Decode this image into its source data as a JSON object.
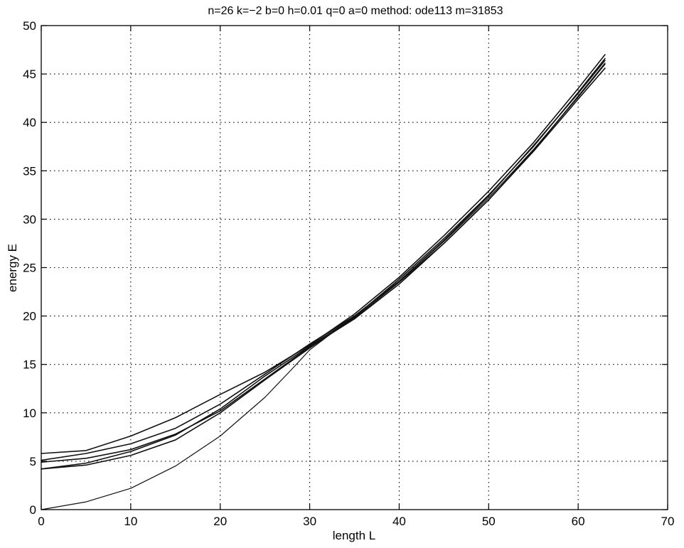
{
  "chart_data": {
    "type": "line",
    "title": "n=26   k=−2   b=0   h=0.01   q=0   a=0   method: ode113   m=31853",
    "xlabel": "length L",
    "ylabel": "energy E",
    "xlim": [
      0,
      70
    ],
    "ylim": [
      0,
      50
    ],
    "xticks": [
      0,
      10,
      20,
      30,
      40,
      50,
      60,
      70
    ],
    "yticks": [
      0,
      5,
      10,
      15,
      20,
      25,
      30,
      35,
      40,
      45,
      50
    ],
    "xtick_labels": [
      "0",
      "10",
      "20",
      "30",
      "40",
      "50",
      "60",
      "70"
    ],
    "ytick_labels": [
      "0",
      "5",
      "10",
      "15",
      "20",
      "25",
      "30",
      "35",
      "40",
      "45",
      "50"
    ],
    "grid": true,
    "grid_style": "dotted",
    "line_color": "#111111",
    "series": [
      {
        "x": [
          0,
          5,
          10,
          15,
          20,
          25,
          28,
          30,
          35,
          40,
          45,
          50,
          55,
          60,
          63
        ],
        "values": [
          0,
          0.8,
          2.2,
          4.5,
          7.6,
          11.6,
          14.5,
          16.5,
          20.0,
          23.6,
          27.7,
          32.2,
          37.2,
          42.6,
          46.0
        ]
      },
      {
        "x": [
          0,
          5,
          10,
          15,
          20,
          25,
          30,
          35,
          40,
          45,
          50,
          55,
          60,
          63
        ],
        "values": [
          5.8,
          6.1,
          7.6,
          9.5,
          11.9,
          14.2,
          17.0,
          20.2,
          24.0,
          28.3,
          32.9,
          37.9,
          43.5,
          47.0
        ]
      },
      {
        "x": [
          0,
          5,
          10,
          15,
          20,
          25,
          30,
          35,
          40,
          45,
          50,
          55,
          60,
          63
        ],
        "values": [
          5.1,
          5.8,
          6.8,
          8.4,
          10.9,
          14.0,
          17.1,
          20.0,
          23.6,
          27.8,
          32.4,
          37.6,
          43.0,
          46.4
        ]
      },
      {
        "x": [
          0,
          5,
          10,
          15,
          20,
          25,
          30,
          35,
          40,
          45,
          50,
          55,
          60,
          63
        ],
        "values": [
          4.9,
          5.3,
          6.2,
          7.8,
          10.2,
          13.5,
          16.8,
          19.7,
          23.3,
          27.5,
          32.0,
          37.1,
          42.7,
          46.1
        ]
      },
      {
        "x": [
          0,
          5,
          10,
          15,
          20,
          25,
          30,
          35,
          40,
          45,
          50,
          55,
          60,
          63
        ],
        "values": [
          4.2,
          4.8,
          6.0,
          7.7,
          10.4,
          13.8,
          16.9,
          19.9,
          23.8,
          28.0,
          32.5,
          37.5,
          43.1,
          46.6
        ]
      },
      {
        "x": [
          0,
          5,
          10,
          15,
          20,
          25,
          30,
          35,
          40,
          45,
          50,
          55,
          60,
          63
        ],
        "values": [
          4.2,
          4.6,
          5.6,
          7.2,
          10.0,
          13.4,
          16.7,
          19.8,
          23.5,
          27.5,
          32.0,
          37.0,
          42.4,
          45.6
        ]
      }
    ]
  }
}
